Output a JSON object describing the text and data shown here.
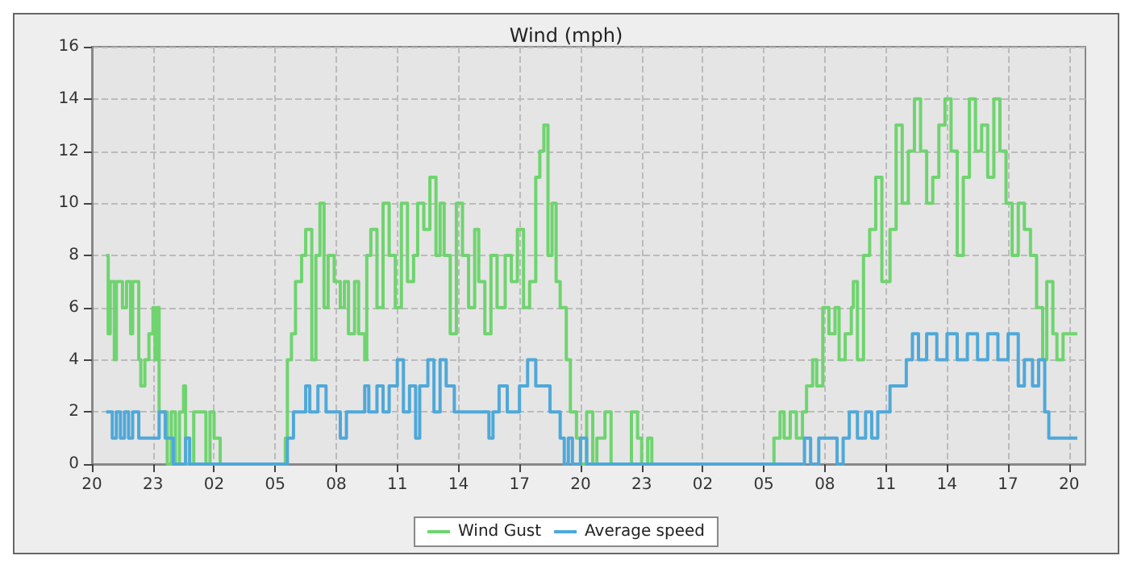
{
  "chart_data": {
    "type": "step",
    "title": "Wind (mph)",
    "xlim": [
      "--01-01T20:00",
      "--01-03T20:48"
    ],
    "xticks": [
      {
        "value": "--01-01T20:00",
        "label": "20"
      },
      {
        "value": "--01-01T23:00",
        "label": "23"
      },
      {
        "value": "--01-02T02:00",
        "label": "02"
      },
      {
        "value": "--01-02T05:00",
        "label": "05"
      },
      {
        "value": "--01-02T08:00",
        "label": "08"
      },
      {
        "value": "--01-02T11:00",
        "label": "11"
      },
      {
        "value": "--01-02T14:00",
        "label": "14"
      },
      {
        "value": "--01-02T17:00",
        "label": "17"
      },
      {
        "value": "--01-02T20:00",
        "label": "20"
      },
      {
        "value": "--01-02T23:00",
        "label": "23"
      },
      {
        "value": "--01-03T02:00",
        "label": "02"
      },
      {
        "value": "--01-03T05:00",
        "label": "05"
      },
      {
        "value": "--01-03T08:00",
        "label": "08"
      },
      {
        "value": "--01-03T11:00",
        "label": "11"
      },
      {
        "value": "--01-03T14:00",
        "label": "14"
      },
      {
        "value": "--01-03T17:00",
        "label": "17"
      },
      {
        "value": "--01-03T20:00",
        "label": "20"
      }
    ],
    "ylim": [
      0,
      16
    ],
    "yticks": [
      0,
      2,
      4,
      6,
      8,
      10,
      12,
      14,
      16
    ],
    "grid": true,
    "legend": "bottom",
    "marker": "none",
    "line_style": "solid",
    "series": [
      {
        "name": "Wind Gust",
        "color": "#6fd46f",
        "x": [
          "--01-01T20:42",
          "--01-01T20:48",
          "--01-01T20:54",
          "--01-01T21:06",
          "--01-01T21:12",
          "--01-01T21:30",
          "--01-01T21:42",
          "--01-01T21:54",
          "--01-01T22:00",
          "--01-01T22:18",
          "--01-01T22:24",
          "--01-01T22:36",
          "--01-01T22:48",
          "--01-01T23:00",
          "--01-01T23:06",
          "--01-01T23:12",
          "--01-01T23:18",
          "--01-01T23:42",
          "--01-01T23:54",
          "--01-02T00:06",
          "--01-02T00:18",
          "--01-02T00:30",
          "--01-02T00:36",
          "--01-02T01:00",
          "--01-02T01:36",
          "--01-02T01:48",
          "--01-02T02:00",
          "--01-02T02:18",
          "--01-02T05:30",
          "--01-02T05:36",
          "--01-02T05:48",
          "--01-02T06:00",
          "--01-02T06:18",
          "--01-02T06:30",
          "--01-02T06:48",
          "--01-02T07:00",
          "--01-02T07:12",
          "--01-02T07:24",
          "--01-02T07:36",
          "--01-02T07:54",
          "--01-02T08:12",
          "--01-02T08:24",
          "--01-02T08:36",
          "--01-02T08:54",
          "--01-02T09:06",
          "--01-02T09:24",
          "--01-02T09:30",
          "--01-02T09:42",
          "--01-02T10:00",
          "--01-02T10:18",
          "--01-02T10:36",
          "--01-02T10:54",
          "--01-02T11:12",
          "--01-02T11:30",
          "--01-02T11:48",
          "--01-02T12:00",
          "--01-02T12:18",
          "--01-02T12:36",
          "--01-02T12:54",
          "--01-02T13:06",
          "--01-02T13:18",
          "--01-02T13:36",
          "--01-02T13:54",
          "--01-02T14:12",
          "--01-02T14:30",
          "--01-02T14:48",
          "--01-02T15:00",
          "--01-02T15:18",
          "--01-02T15:36",
          "--01-02T15:54",
          "--01-02T16:18",
          "--01-02T16:36",
          "--01-02T16:54",
          "--01-02T17:12",
          "--01-02T17:30",
          "--01-02T17:48",
          "--01-02T18:00",
          "--01-02T18:12",
          "--01-02T18:24",
          "--01-02T18:36",
          "--01-02T18:48",
          "--01-02T19:00",
          "--01-02T19:18",
          "--01-02T19:30",
          "--01-02T19:48",
          "--01-02T20:00",
          "--01-02T20:18",
          "--01-02T20:36",
          "--01-02T20:48",
          "--01-02T21:12",
          "--01-02T21:30",
          "--01-02T22:30",
          "--01-02T22:48",
          "--01-02T23:00",
          "--01-02T23:18",
          "--01-02T23:30",
          "--01-03T05:30",
          "--01-03T05:48",
          "--01-03T06:00",
          "--01-03T06:18",
          "--01-03T06:36",
          "--01-03T06:54",
          "--01-03T07:06",
          "--01-03T07:24",
          "--01-03T07:36",
          "--01-03T07:54",
          "--01-03T08:12",
          "--01-03T08:30",
          "--01-03T08:42",
          "--01-03T09:00",
          "--01-03T09:18",
          "--01-03T09:24",
          "--01-03T09:36",
          "--01-03T09:54",
          "--01-03T10:12",
          "--01-03T10:30",
          "--01-03T10:48",
          "--01-03T11:12",
          "--01-03T11:30",
          "--01-03T11:48",
          "--01-03T12:06",
          "--01-03T12:24",
          "--01-03T12:42",
          "--01-03T13:00",
          "--01-03T13:18",
          "--01-03T13:36",
          "--01-03T13:54",
          "--01-03T14:12",
          "--01-03T14:30",
          "--01-03T14:48",
          "--01-03T15:06",
          "--01-03T15:24",
          "--01-03T15:42",
          "--01-03T16:00",
          "--01-03T16:18",
          "--01-03T16:36",
          "--01-03T16:54",
          "--01-03T17:12",
          "--01-03T17:30",
          "--01-03T17:48",
          "--01-03T18:06",
          "--01-03T18:24",
          "--01-03T18:42",
          "--01-03T18:54",
          "--01-03T19:12",
          "--01-03T19:24",
          "--01-03T19:42",
          "--01-03T20:24"
        ],
        "values": [
          8,
          5,
          7,
          4,
          7,
          6,
          7,
          5,
          7,
          4,
          3,
          4,
          5,
          6,
          4,
          6,
          2,
          0,
          2,
          0,
          2,
          3,
          0,
          2,
          0,
          2,
          1,
          0,
          1,
          4,
          5,
          7,
          8,
          9,
          4,
          8,
          10,
          6,
          8,
          7,
          6,
          7,
          5,
          7,
          5,
          4,
          8,
          9,
          6,
          10,
          8,
          6,
          10,
          7,
          8,
          10,
          9,
          11,
          8,
          10,
          8,
          5,
          10,
          8,
          6,
          9,
          7,
          5,
          8,
          6,
          8,
          7,
          9,
          6,
          7,
          11,
          12,
          13,
          8,
          10,
          7,
          6,
          4,
          2,
          1,
          0,
          2,
          0,
          1,
          2,
          0,
          2,
          1,
          0,
          1,
          0,
          1,
          2,
          1,
          2,
          1,
          2,
          3,
          4,
          3,
          6,
          5,
          6,
          4,
          5,
          6,
          7,
          4,
          8,
          9,
          11,
          7,
          9,
          13,
          10,
          12,
          14,
          12,
          10,
          11,
          13,
          14,
          12,
          8,
          11,
          14,
          12,
          13,
          11,
          14,
          12,
          10,
          8,
          10,
          9,
          8,
          6,
          4,
          7,
          5,
          4,
          5,
          5
        ]
      },
      {
        "name": "Average speed",
        "color": "#4fa8d8",
        "x": [
          "--01-01T20:42",
          "--01-01T21:00",
          "--01-01T21:12",
          "--01-01T21:24",
          "--01-01T21:36",
          "--01-01T21:48",
          "--01-01T22:00",
          "--01-01T22:18",
          "--01-01T23:18",
          "--01-01T23:36",
          "--01-02T00:00",
          "--01-02T00:30",
          "--01-02T00:36",
          "--01-02T00:48",
          "--01-02T05:36",
          "--01-02T05:54",
          "--01-02T06:30",
          "--01-02T06:42",
          "--01-02T07:06",
          "--01-02T07:30",
          "--01-02T08:00",
          "--01-02T08:12",
          "--01-02T08:30",
          "--01-02T09:24",
          "--01-02T09:36",
          "--01-02T10:00",
          "--01-02T10:18",
          "--01-02T10:36",
          "--01-02T11:00",
          "--01-02T11:18",
          "--01-02T11:36",
          "--01-02T11:54",
          "--01-02T12:06",
          "--01-02T12:30",
          "--01-02T12:48",
          "--01-02T13:06",
          "--01-02T13:24",
          "--01-02T13:48",
          "--01-02T15:30",
          "--01-02T15:42",
          "--01-02T16:00",
          "--01-02T16:24",
          "--01-02T17:00",
          "--01-02T17:24",
          "--01-02T17:48",
          "--01-02T18:30",
          "--01-02T19:00",
          "--01-02T19:12",
          "--01-02T19:24",
          "--01-02T19:36",
          "--01-02T20:00",
          "--01-02T20:18",
          "--01-03T07:00",
          "--01-03T07:18",
          "--01-03T07:42",
          "--01-03T08:36",
          "--01-03T08:54",
          "--01-03T09:12",
          "--01-03T09:36",
          "--01-03T10:00",
          "--01-03T10:18",
          "--01-03T10:36",
          "--01-03T11:12",
          "--01-03T11:42",
          "--01-03T12:00",
          "--01-03T12:18",
          "--01-03T12:36",
          "--01-03T13:00",
          "--01-03T13:30",
          "--01-03T14:00",
          "--01-03T14:30",
          "--01-03T15:00",
          "--01-03T15:30",
          "--01-03T16:00",
          "--01-03T16:30",
          "--01-03T17:00",
          "--01-03T17:30",
          "--01-03T17:48",
          "--01-03T18:12",
          "--01-03T18:30",
          "--01-03T18:48",
          "--01-03T19:00",
          "--01-03T20:24"
        ],
        "values": [
          2,
          1,
          2,
          1,
          2,
          1,
          2,
          1,
          2,
          1,
          0,
          0,
          1,
          0,
          1,
          2,
          3,
          2,
          3,
          2,
          2,
          1,
          2,
          3,
          2,
          3,
          2,
          3,
          4,
          2,
          3,
          1,
          3,
          4,
          2,
          4,
          3,
          2,
          1,
          2,
          3,
          2,
          3,
          4,
          3,
          2,
          1,
          0,
          1,
          0,
          1,
          0,
          1,
          0,
          1,
          0,
          1,
          2,
          1,
          2,
          1,
          2,
          3,
          3,
          4,
          5,
          4,
          5,
          4,
          5,
          4,
          5,
          4,
          5,
          4,
          5,
          3,
          4,
          3,
          4,
          2,
          1,
          1
        ]
      }
    ]
  }
}
